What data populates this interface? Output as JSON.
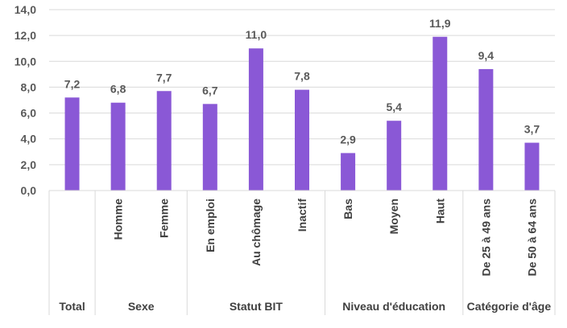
{
  "chart_data": {
    "type": "bar",
    "ylim": [
      0,
      14
    ],
    "yticks": [
      "0,0",
      "2,0",
      "4,0",
      "6,0",
      "8,0",
      "10,0",
      "12,0",
      "14,0"
    ],
    "bar_color": "#8A58D6",
    "grid": true,
    "categories": [
      "",
      "Homme",
      "Femme",
      "En emploi",
      "Au chômage",
      "Inactif",
      "Bas",
      "Moyen",
      "Haut",
      "De 25 à 49 ans",
      "De 50 à 64 ans"
    ],
    "values": [
      7.2,
      6.8,
      7.7,
      6.7,
      11.0,
      7.8,
      2.9,
      5.4,
      11.9,
      9.4,
      3.7
    ],
    "data_labels": [
      "7,2",
      "6,8",
      "7,7",
      "6,7",
      "11,0",
      "7,8",
      "2,9",
      "5,4",
      "11,9",
      "9,4",
      "3,7"
    ],
    "groups": [
      {
        "label": "Total",
        "size": 1
      },
      {
        "label": "Sexe",
        "size": 2
      },
      {
        "label": "Statut BIT",
        "size": 3
      },
      {
        "label": "Niveau d'éducation",
        "size": 3
      },
      {
        "label": "Catégorie d'âge",
        "size": 2
      }
    ]
  }
}
